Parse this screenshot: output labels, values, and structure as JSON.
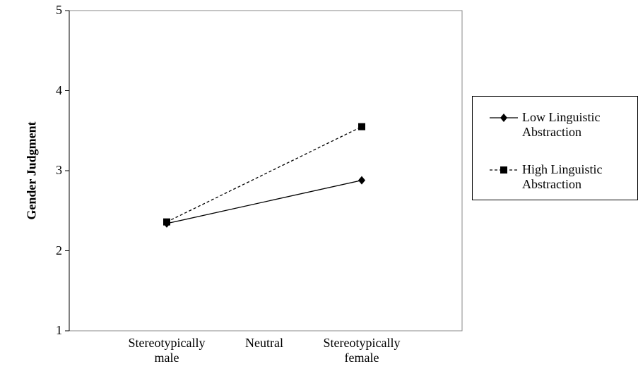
{
  "chart_data": {
    "type": "line",
    "y_label": "Gender Judgment",
    "categories": [
      "Stereotypically male",
      "Neutral",
      "Stereotypically female"
    ],
    "series": [
      {
        "name": "Low Linguistic Abstraction",
        "color": "#000000",
        "dash": "solid",
        "marker": "diamond",
        "values": [
          2.34,
          null,
          2.88
        ]
      },
      {
        "name": "High Linguistic Abstraction",
        "color": "#000000",
        "dash": "dashed",
        "marker": "square",
        "values": [
          2.36,
          null,
          3.55
        ]
      }
    ],
    "span_gaps": true,
    "ylim": [
      1,
      5
    ],
    "yticks": [
      1,
      2,
      3,
      4,
      5
    ],
    "grid": false,
    "legend": "right"
  }
}
